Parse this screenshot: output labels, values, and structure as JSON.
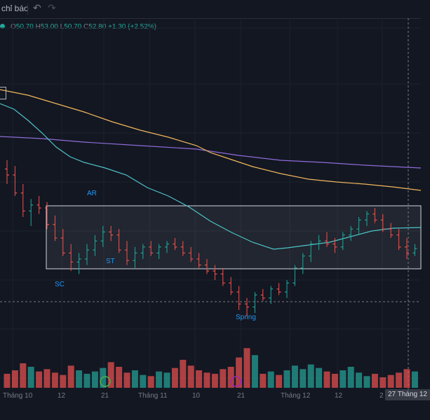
{
  "toolbar": {
    "indicators_label": "chỉ báo",
    "undo_icon": "↶",
    "redo_icon": "↷"
  },
  "ohlc": {
    "o_label": "O",
    "o": "50.70",
    "h_label": "H",
    "h": "53.00",
    "l_label": "L",
    "l": "50.70",
    "c_label": "C",
    "c": "52.80",
    "change": "+1.30 (+2.52%)"
  },
  "crosshair_date": "27 Tháng 12",
  "colors": {
    "background": "#131722",
    "up": "#26a69a",
    "down": "#ef5350",
    "ma_short": "#4fc3c9",
    "ma_mid": "#f0b75c",
    "ma_long": "#8e6cd8",
    "range_box": "#d1d4dc",
    "annotation": "#2196f3"
  },
  "chart_data": {
    "type": "candlestick",
    "x_axis_labels": [
      "Tháng 10",
      "12",
      "21",
      "Tháng 11",
      "10",
      "21",
      "Tháng 12",
      "12",
      "2"
    ],
    "wyckoff_labels": [
      "AR",
      "ST",
      "SC",
      "Spring"
    ],
    "candles": [
      [
        46.6,
        47.2,
        45.6,
        46.2
      ],
      [
        46.2,
        46.8,
        44.8,
        45.0
      ],
      [
        45.0,
        45.6,
        43.4,
        43.8
      ],
      [
        43.8,
        44.6,
        42.8,
        44.2
      ],
      [
        44.2,
        44.8,
        43.6,
        44.0
      ],
      [
        44.0,
        44.4,
        42.6,
        42.9
      ],
      [
        42.9,
        43.5,
        41.8,
        42.0
      ],
      [
        42.0,
        42.6,
        40.8,
        41.0
      ],
      [
        41.0,
        41.6,
        39.8,
        40.4
      ],
      [
        40.4,
        41.0,
        39.6,
        40.6
      ],
      [
        40.6,
        41.6,
        40.2,
        41.2
      ],
      [
        41.2,
        42.2,
        40.8,
        41.8
      ],
      [
        41.8,
        42.8,
        41.4,
        42.4
      ],
      [
        42.4,
        42.8,
        41.8,
        42.2
      ],
      [
        42.2,
        42.6,
        41.0,
        41.2
      ],
      [
        41.2,
        41.8,
        40.2,
        40.5
      ],
      [
        40.5,
        41.4,
        40.0,
        41.0
      ],
      [
        41.0,
        41.6,
        40.6,
        41.4
      ],
      [
        41.4,
        41.8,
        40.8,
        41.0
      ],
      [
        41.0,
        41.6,
        40.6,
        41.4
      ],
      [
        41.4,
        41.8,
        41.0,
        41.6
      ],
      [
        41.6,
        42.0,
        41.2,
        41.4
      ],
      [
        41.4,
        41.8,
        40.8,
        41.0
      ],
      [
        41.0,
        41.4,
        40.4,
        40.6
      ],
      [
        40.6,
        41.0,
        40.0,
        40.2
      ],
      [
        40.2,
        40.6,
        39.6,
        39.8
      ],
      [
        39.8,
        40.2,
        39.2,
        39.6
      ],
      [
        39.6,
        40.0,
        38.8,
        39.0
      ],
      [
        39.0,
        39.4,
        38.2,
        38.4
      ],
      [
        38.4,
        38.8,
        37.2,
        37.6
      ],
      [
        37.6,
        38.0,
        36.8,
        37.4
      ],
      [
        37.4,
        38.4,
        37.0,
        38.2
      ],
      [
        38.2,
        38.6,
        37.8,
        38.0
      ],
      [
        38.0,
        38.8,
        37.6,
        38.6
      ],
      [
        38.6,
        39.0,
        38.2,
        38.4
      ],
      [
        38.4,
        39.2,
        38.0,
        39.0
      ],
      [
        39.0,
        40.2,
        38.8,
        40.0
      ],
      [
        40.0,
        41.0,
        39.6,
        40.8
      ],
      [
        40.8,
        41.8,
        40.4,
        41.6
      ],
      [
        41.6,
        42.2,
        41.2,
        41.8
      ],
      [
        41.8,
        42.4,
        41.4,
        41.6
      ],
      [
        41.6,
        42.0,
        41.0,
        41.4
      ],
      [
        41.4,
        42.4,
        41.2,
        42.2
      ],
      [
        42.2,
        42.8,
        41.8,
        42.6
      ],
      [
        42.6,
        43.4,
        42.2,
        43.2
      ],
      [
        43.2,
        43.8,
        42.8,
        43.6
      ],
      [
        43.6,
        44.0,
        43.0,
        43.2
      ],
      [
        43.2,
        43.6,
        42.4,
        42.6
      ],
      [
        42.6,
        43.0,
        42.0,
        42.2
      ],
      [
        42.2,
        42.6,
        41.2,
        41.4
      ],
      [
        41.4,
        42.0,
        40.6,
        41.0
      ],
      [
        41.0,
        41.6,
        40.8,
        41.3
      ]
    ],
    "volumes": [
      1.2,
      1.5,
      2.1,
      1.8,
      1.4,
      1.6,
      1.3,
      1.1,
      1.9,
      1.5,
      1.2,
      1.4,
      1.7,
      2.2,
      1.8,
      1.3,
      1.5,
      1.1,
      1.0,
      1.4,
      1.3,
      1.7,
      2.4,
      1.9,
      1.5,
      1.3,
      1.2,
      1.6,
      1.8,
      2.6,
      3.4,
      2.8,
      1.2,
      1.4,
      1.1,
      1.5,
      1.9,
      1.6,
      2.0,
      1.7,
      1.4,
      1.2,
      1.5,
      1.8,
      1.3,
      1.0,
      1.2,
      0.9,
      1.1,
      1.3,
      1.6,
      1.4
    ]
  }
}
